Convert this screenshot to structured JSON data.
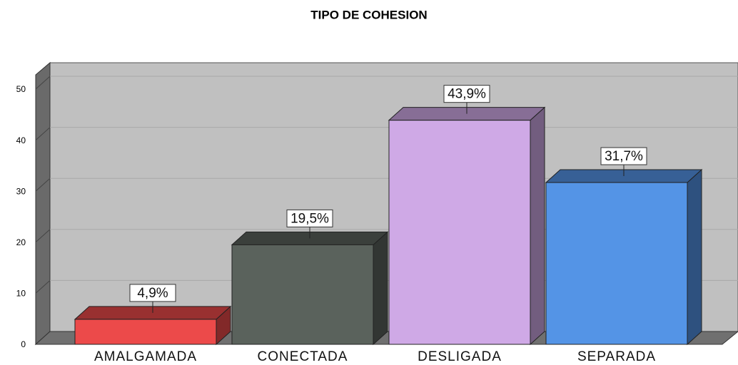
{
  "chart_data": {
    "type": "bar3d",
    "title": "TIPO DE COHESION",
    "categories": [
      "AMALGAMADA",
      "CONECTADA",
      "DESLIGADA",
      "SEPARADA"
    ],
    "values": [
      4.9,
      19.5,
      43.9,
      31.7
    ],
    "value_labels": [
      "4,9%",
      "19,5%",
      "43,9%",
      "31,7%"
    ],
    "colors": [
      "#ec4a4a",
      "#5a625c",
      "#cfa9e6",
      "#5494e6"
    ],
    "ylim": [
      0,
      50
    ],
    "yticks": [
      0,
      10,
      20,
      30,
      40,
      50
    ],
    "grid": true
  }
}
